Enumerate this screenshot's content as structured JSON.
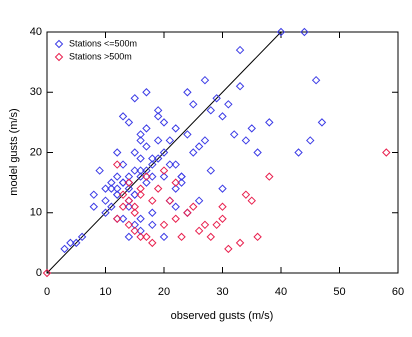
{
  "chart_data": {
    "type": "scatter",
    "x_label": "observed gusts (m/s)",
    "y_label": "model gusts (m/s)",
    "xlim": [
      0,
      60
    ],
    "ylim": [
      0,
      40
    ],
    "xticks": [
      0,
      10,
      20,
      30,
      40,
      50,
      60
    ],
    "yticks": [
      0,
      10,
      20,
      30,
      40
    ],
    "legend_position": "upper-left",
    "series": [
      {
        "name": "Stations <=500m",
        "color": "#3c3ce6",
        "x": [
          12,
          13,
          14,
          15,
          16,
          17,
          18,
          14,
          13,
          15,
          16,
          11,
          10,
          12,
          17,
          19,
          20,
          22,
          18,
          16,
          14,
          13,
          15,
          17,
          21,
          23,
          25,
          24,
          20,
          19,
          11,
          9,
          8,
          10,
          12,
          14,
          16,
          18,
          22,
          26,
          28,
          30,
          27,
          25,
          23,
          33,
          35,
          34,
          36,
          38,
          40,
          46,
          47,
          45,
          43,
          30,
          28,
          26,
          32,
          29,
          31,
          24,
          22,
          20,
          18,
          16,
          14,
          12,
          10,
          8,
          6,
          5,
          4,
          3,
          13,
          15,
          17,
          19,
          21,
          15,
          14,
          16,
          12,
          18,
          20,
          22,
          24,
          13,
          11,
          17,
          19,
          15,
          16,
          14,
          12,
          21,
          23,
          27,
          33,
          44
        ],
        "values": [
          14,
          15,
          16,
          13,
          17,
          15,
          16,
          12,
          18,
          20,
          19,
          11,
          10,
          13,
          21,
          22,
          20,
          24,
          18,
          23,
          14,
          9,
          8,
          17,
          12,
          15,
          28,
          30,
          25,
          26,
          15,
          17,
          13,
          12,
          16,
          11,
          9,
          10,
          18,
          21,
          27,
          26,
          32,
          20,
          16,
          31,
          24,
          22,
          20,
          25,
          40,
          32,
          25,
          22,
          20,
          14,
          17,
          12,
          23,
          29,
          28,
          23,
          14,
          16,
          19,
          22,
          25,
          20,
          14,
          11,
          6,
          5,
          5,
          4,
          26,
          29,
          30,
          27,
          22,
          13,
          6,
          7,
          9,
          8,
          6,
          11,
          10,
          15,
          14,
          24,
          19,
          17,
          16,
          15,
          13,
          18,
          16,
          22,
          37,
          40
        ]
      },
      {
        "name": "Stations >500m",
        "color": "#e8204e",
        "x": [
          0,
          14,
          15,
          13,
          16,
          12,
          14,
          15,
          17,
          18,
          20,
          22,
          24,
          21,
          19,
          26,
          28,
          30,
          33,
          35,
          38,
          36,
          31,
          27,
          25,
          23,
          16,
          14,
          13,
          15,
          58,
          20,
          22,
          17,
          12,
          30,
          34,
          29,
          18,
          16
        ],
        "values": [
          0,
          12,
          10,
          11,
          13,
          9,
          8,
          7,
          6,
          5,
          8,
          9,
          10,
          12,
          14,
          7,
          6,
          9,
          5,
          12,
          16,
          6,
          4,
          8,
          11,
          6,
          14,
          15,
          13,
          11,
          20,
          17,
          15,
          16,
          18,
          11,
          13,
          8,
          12,
          6
        ]
      }
    ]
  }
}
